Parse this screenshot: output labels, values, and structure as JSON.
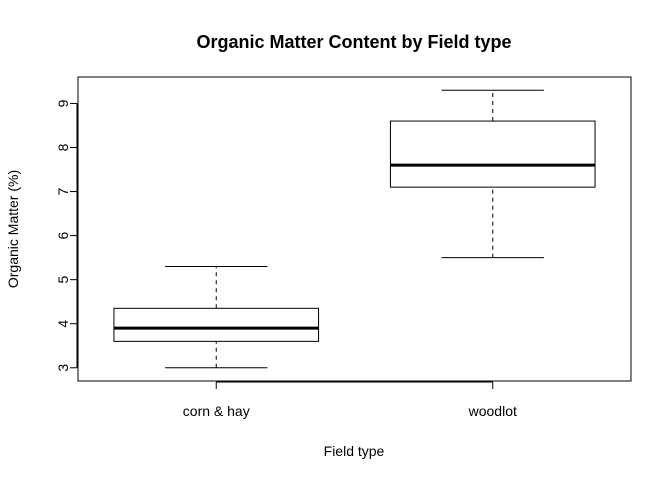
{
  "chart_data": {
    "type": "boxplot",
    "title": "Organic Matter Content by Field type",
    "xlabel": "Field type",
    "ylabel": "Organic Matter (%)",
    "ylim": [
      2.7,
      9.6
    ],
    "yticks": [
      3,
      4,
      5,
      6,
      7,
      8,
      9
    ],
    "ytick_labels": [
      "3",
      "4",
      "5",
      "6",
      "7",
      "8",
      "9"
    ],
    "categories": [
      "corn & hay",
      "woodlot"
    ],
    "boxes": [
      {
        "category": "corn & hay",
        "min": 3.0,
        "q1": 3.6,
        "median": 3.9,
        "q3": 4.35,
        "max": 5.3
      },
      {
        "category": "woodlot",
        "min": 5.5,
        "q1": 7.1,
        "median": 7.6,
        "q3": 8.6,
        "max": 9.3
      }
    ],
    "grid": false,
    "colors": {
      "box_fill": "#ffffff",
      "stroke": "#000000"
    }
  }
}
